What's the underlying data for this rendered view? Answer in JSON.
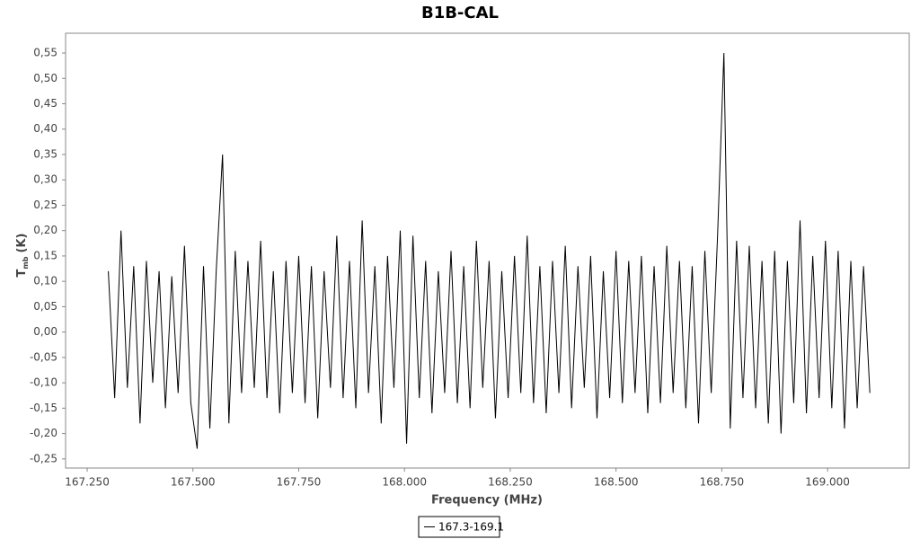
{
  "chart_data": {
    "type": "line",
    "title": "B1B-CAL",
    "x_label": "Frequency (MHz)",
    "y_label": {
      "main": "T",
      "sub": "mb",
      "unit": "(K)"
    },
    "xlim": [
      167.199,
      169.193
    ],
    "ylim": [
      -0.268,
      0.589
    ],
    "grid": false,
    "legend": "bottom",
    "xticks": [
      {
        "value": 167.25,
        "label": "167.250"
      },
      {
        "value": 167.5,
        "label": "167.500"
      },
      {
        "value": 167.75,
        "label": "167.750"
      },
      {
        "value": 168.0,
        "label": "168.000"
      },
      {
        "value": 168.25,
        "label": "168.250"
      },
      {
        "value": 168.5,
        "label": "168.500"
      },
      {
        "value": 168.75,
        "label": "168.750"
      },
      {
        "value": 169.0,
        "label": "169.000"
      }
    ],
    "yticks": [
      {
        "value": -0.25,
        "label": "-0,25"
      },
      {
        "value": -0.2,
        "label": "-0,20"
      },
      {
        "value": -0.15,
        "label": "-0,15"
      },
      {
        "value": -0.1,
        "label": "-0,10"
      },
      {
        "value": -0.05,
        "label": "-0,05"
      },
      {
        "value": 0,
        "label": "0,00"
      },
      {
        "value": 0.05,
        "label": "0,05"
      },
      {
        "value": 0.1,
        "label": "0,10"
      },
      {
        "value": 0.15,
        "label": "0,15"
      },
      {
        "value": 0.2,
        "label": "0,20"
      },
      {
        "value": 0.25,
        "label": "0,25"
      },
      {
        "value": 0.3,
        "label": "0,30"
      },
      {
        "value": 0.35,
        "label": "0,35"
      },
      {
        "value": 0.4,
        "label": "0,40"
      },
      {
        "value": 0.45,
        "label": "0,45"
      },
      {
        "value": 0.5,
        "label": "0,50"
      },
      {
        "value": 0.55,
        "label": "0,55"
      }
    ],
    "x": [
      167.3,
      167.315,
      167.33,
      167.345,
      167.36,
      167.375,
      167.39,
      167.405,
      167.42,
      167.435,
      167.45,
      167.465,
      167.48,
      167.495,
      167.51,
      167.525,
      167.54,
      167.555,
      167.57,
      167.585,
      167.6,
      167.615,
      167.63,
      167.645,
      167.66,
      167.675,
      167.69,
      167.705,
      167.72,
      167.735,
      167.75,
      167.765,
      167.78,
      167.795,
      167.81,
      167.825,
      167.84,
      167.855,
      167.87,
      167.885,
      167.9,
      167.915,
      167.93,
      167.945,
      167.96,
      167.975,
      167.99,
      168.005,
      168.02,
      168.035,
      168.05,
      168.065,
      168.08,
      168.095,
      168.11,
      168.125,
      168.14,
      168.155,
      168.17,
      168.185,
      168.2,
      168.215,
      168.23,
      168.245,
      168.26,
      168.275,
      168.29,
      168.305,
      168.32,
      168.335,
      168.35,
      168.365,
      168.38,
      168.395,
      168.41,
      168.425,
      168.44,
      168.455,
      168.47,
      168.485,
      168.5,
      168.515,
      168.53,
      168.545,
      168.56,
      168.575,
      168.59,
      168.605,
      168.62,
      168.635,
      168.65,
      168.665,
      168.68,
      168.695,
      168.71,
      168.725,
      168.74,
      168.755,
      168.77,
      168.785,
      168.8,
      168.815,
      168.83,
      168.845,
      168.86,
      168.875,
      168.89,
      168.905,
      168.92,
      168.935,
      168.95,
      168.965,
      168.98,
      168.995,
      169.01,
      169.025,
      169.04,
      169.055,
      169.07,
      169.085,
      169.1
    ],
    "series": [
      {
        "name": "167.3-169.1",
        "color": "#000000",
        "values": [
          0.12,
          -0.13,
          0.2,
          -0.11,
          0.13,
          -0.18,
          0.14,
          -0.1,
          0.12,
          -0.15,
          0.11,
          -0.12,
          0.17,
          -0.14,
          -0.23,
          0.13,
          -0.19,
          0.12,
          0.35,
          -0.18,
          0.16,
          -0.12,
          0.14,
          -0.11,
          0.18,
          -0.13,
          0.12,
          -0.16,
          0.14,
          -0.12,
          0.15,
          -0.14,
          0.13,
          -0.17,
          0.12,
          -0.11,
          0.19,
          -0.13,
          0.14,
          -0.15,
          0.22,
          -0.12,
          0.13,
          -0.18,
          0.15,
          -0.11,
          0.2,
          -0.22,
          0.19,
          -0.13,
          0.14,
          -0.16,
          0.12,
          -0.12,
          0.16,
          -0.14,
          0.13,
          -0.15,
          0.18,
          -0.11,
          0.14,
          -0.17,
          0.12,
          -0.13,
          0.15,
          -0.12,
          0.19,
          -0.14,
          0.13,
          -0.16,
          0.14,
          -0.12,
          0.17,
          -0.15,
          0.13,
          -0.11,
          0.15,
          -0.17,
          0.12,
          -0.13,
          0.16,
          -0.14,
          0.14,
          -0.12,
          0.15,
          -0.16,
          0.13,
          -0.14,
          0.17,
          -0.12,
          0.14,
          -0.15,
          0.13,
          -0.18,
          0.16,
          -0.12,
          0.19,
          0.55,
          -0.19,
          0.18,
          -0.13,
          0.17,
          -0.15,
          0.14,
          -0.18,
          0.16,
          -0.2,
          0.14,
          -0.14,
          0.22,
          -0.16,
          0.15,
          -0.13,
          0.18,
          -0.15,
          0.16,
          -0.19,
          0.14,
          -0.15,
          0.13,
          -0.12
        ]
      }
    ]
  }
}
